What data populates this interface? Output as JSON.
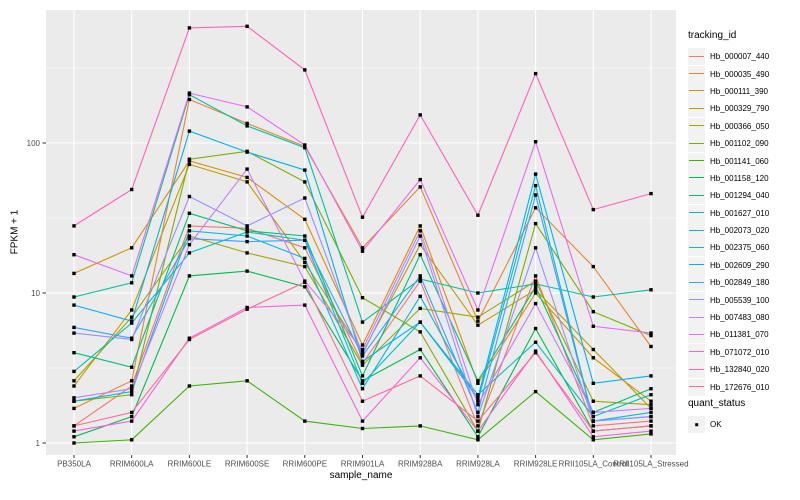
{
  "chart_data": {
    "type": "line",
    "title": "",
    "xlabel": "sample_name",
    "ylabel": "FPKM + 1",
    "y_scale": "log10",
    "y_ticks": [
      1,
      10,
      100
    ],
    "y_minor_ticks": [
      3.162,
      31.62,
      316.2
    ],
    "ylim": [
      0.85,
      770
    ],
    "grid": true,
    "legend_position": "right",
    "panel_background": "#EBEBEB",
    "gridline_color": "#FFFFFF",
    "axis_text_color": "#4D4D4D",
    "point_shape": "filled-square",
    "point_color": "#000000",
    "categories": [
      "PB350LA",
      "RRIM600LA",
      "RRIM600LE",
      "RRIM600SE",
      "RRIM600PE",
      "RRIM901LA",
      "RRIM928BA",
      "RRIM928LA",
      "RRIM928LE",
      "RRII105LA_Control",
      "RRII105LA_Stressed"
    ],
    "series": [
      {
        "name": "Hb_000007_440",
        "color": "#F8766D",
        "values": [
          1.3,
          2.4,
          28,
          27,
          20,
          3.4,
          12,
          1.3,
          13,
          1.3,
          1.4
        ]
      },
      {
        "name": "Hb_000035_490",
        "color": "#EA8331",
        "values": [
          1.7,
          2.6,
          195,
          135,
          95,
          20,
          51,
          6.5,
          37,
          15,
          4.4
        ]
      },
      {
        "name": "Hb_000111_390",
        "color": "#D89000",
        "values": [
          13.5,
          20,
          76,
          59,
          31,
          4.5,
          28,
          2.5,
          10,
          3.7,
          1.9
        ]
      },
      {
        "name": "Hb_000329_790",
        "color": "#C09B00",
        "values": [
          2.4,
          7.7,
          72,
          55,
          16,
          4.0,
          21,
          6.1,
          10.5,
          4.2,
          1.7
        ]
      },
      {
        "name": "Hb_000366_050",
        "color": "#A3A500",
        "values": [
          2.6,
          6.9,
          24,
          18.5,
          15,
          3.3,
          7.9,
          6.9,
          12,
          1.9,
          1.8
        ]
      },
      {
        "name": "Hb_001102_090",
        "color": "#7CAE00",
        "values": [
          1.9,
          2.1,
          78,
          88,
          55,
          9.3,
          5.5,
          1.2,
          29,
          7.5,
          5.2
        ]
      },
      {
        "name": "Hb_001141_060",
        "color": "#39B600",
        "values": [
          1.0,
          1.05,
          2.4,
          2.6,
          1.4,
          1.25,
          1.3,
          1.05,
          2.2,
          1.05,
          1.15
        ]
      },
      {
        "name": "Hb_001158_120",
        "color": "#00BB4E",
        "values": [
          1.1,
          1.5,
          13,
          14,
          11,
          2.6,
          4.2,
          1.1,
          5.8,
          1.2,
          1.3
        ]
      },
      {
        "name": "Hb_001294_040",
        "color": "#00BF7D",
        "values": [
          4.0,
          3.2,
          34,
          26,
          24,
          2.8,
          18,
          2.6,
          11,
          1.6,
          2.3
        ]
      },
      {
        "name": "Hb_001627_010",
        "color": "#00C1A3",
        "values": [
          9.4,
          11.7,
          210,
          130,
          93,
          6.4,
          12.4,
          10,
          11.5,
          9.4,
          10.5
        ]
      },
      {
        "name": "Hb_002073_020",
        "color": "#00BFC4",
        "values": [
          3.0,
          6.3,
          18.5,
          25.5,
          22.5,
          2.5,
          6.4,
          2.1,
          4.7,
          1.5,
          2.1
        ]
      },
      {
        "name": "Hb_002375_060",
        "color": "#00BAE0",
        "values": [
          1.9,
          2.2,
          26,
          24,
          17,
          2.3,
          9.5,
          1.9,
          52,
          1.4,
          1.6
        ]
      },
      {
        "name": "Hb_002609_290",
        "color": "#00B0F6",
        "values": [
          8.3,
          6.5,
          120,
          87,
          66,
          3.5,
          6.4,
          2.0,
          62,
          2.5,
          2.8
        ]
      },
      {
        "name": "Hb_002849_180",
        "color": "#35A2FF",
        "values": [
          5.9,
          5.0,
          23,
          22,
          22.5,
          3.8,
          13,
          1.6,
          45,
          1.4,
          1.5
        ]
      },
      {
        "name": "Hb_005539_100",
        "color": "#9590FF",
        "values": [
          5.4,
          4.9,
          44,
          28,
          43,
          3.9,
          24,
          1.5,
          20,
          1.4,
          1.5
        ]
      },
      {
        "name": "Hb_007483_080",
        "color": "#C77CFF",
        "values": [
          2.0,
          2.3,
          21,
          67,
          12,
          4.2,
          26,
          1.8,
          8.5,
          1.6,
          1.7
        ]
      },
      {
        "name": "Hb_011381_070",
        "color": "#E76BF3",
        "values": [
          18,
          13,
          215,
          174,
          97,
          19,
          57,
          7.7,
          102,
          6.0,
          5.4
        ]
      },
      {
        "name": "Hb_071072_010",
        "color": "#FA62DB",
        "values": [
          1.2,
          1.4,
          5.0,
          8.0,
          8.3,
          1.4,
          3.7,
          1.2,
          4.1,
          1.1,
          1.2
        ]
      },
      {
        "name": "Hb_132840_020",
        "color": "#FF62BC",
        "values": [
          28,
          49,
          585,
          600,
          307,
          32,
          154,
          33,
          290,
          36,
          46
        ]
      },
      {
        "name": "Hb_172676_010",
        "color": "#FF6A98",
        "values": [
          1.3,
          1.6,
          4.9,
          7.8,
          11.8,
          1.9,
          2.8,
          1.4,
          4.0,
          1.2,
          1.3
        ]
      }
    ],
    "legend": {
      "series_title": "tracking_id",
      "quant_title": "quant_status",
      "quant_items": [
        {
          "label": "OK"
        }
      ]
    }
  }
}
